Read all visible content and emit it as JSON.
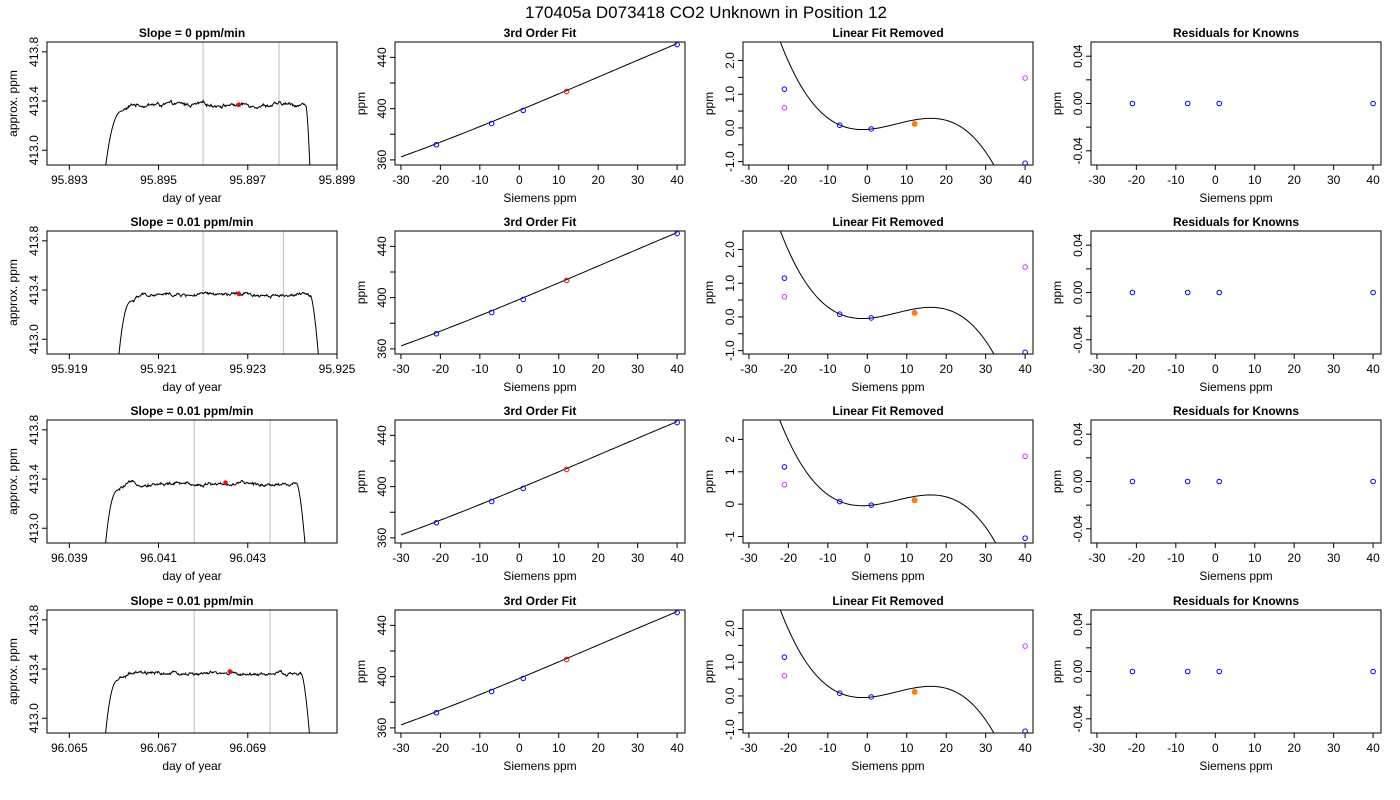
{
  "figure_title": "170405a     D073418   CO2 Unknown in Position  12",
  "colors": {
    "axis": "#000000",
    "trace": "#000000",
    "fit_line": "#000000",
    "sample_window": "#c8c8c8",
    "known_points": "#0000ff",
    "unknown_point": "#ff0000",
    "unknown_residual": "#ff7f0e",
    "raw_offsets": "#cc33ff"
  },
  "chart_data": [
    {
      "type": "line",
      "panel": "trace",
      "row": 0,
      "title": "Slope =  0  ppm/min",
      "xlabel": "day of year",
      "ylabel": "approx. ppm",
      "xlim": [
        95.8925,
        95.899
      ],
      "ylim": [
        412.88,
        413.88
      ],
      "xticks": [
        95.893,
        95.895,
        95.897,
        95.899
      ],
      "xtick_labels": [
        "95.893",
        "95.895",
        "95.897",
        "95.899"
      ],
      "yticks": [
        413.0,
        413.4,
        413.8
      ],
      "ytick_labels": [
        "413.0",
        "413.4",
        "413.8"
      ],
      "x_start": 95.8938,
      "x_end": 95.8984,
      "plateau_start": 95.8942,
      "plateau_end": 95.8983,
      "plateau_level": 413.37,
      "noise": 0.02,
      "window": [
        95.896,
        95.8977
      ],
      "marker": {
        "x": 95.8968,
        "y": 413.37
      }
    },
    {
      "type": "scatter",
      "panel": "fit",
      "row": 0,
      "title": "3rd Order Fit",
      "xlabel": "Siemens ppm",
      "ylabel": "ppm",
      "xlim": [
        -31.5,
        42
      ],
      "ylim": [
        356,
        452
      ],
      "xticks": [
        -30,
        -20,
        -10,
        0,
        10,
        20,
        30,
        40
      ],
      "yticks": [
        360,
        380,
        400,
        420,
        440
      ],
      "ytick_labels": [
        "360",
        "",
        "400",
        "",
        "440"
      ],
      "curve_x": [
        -30,
        40
      ],
      "knowns": [
        {
          "x": -21,
          "y": 371.8
        },
        {
          "x": -7,
          "y": 388.4
        },
        {
          "x": 1,
          "y": 398.6
        },
        {
          "x": 40,
          "y": 450.0
        }
      ],
      "unknown": {
        "x": 12,
        "y": 413.4
      }
    },
    {
      "type": "scatter",
      "panel": "linres",
      "row": 0,
      "title": "Linear Fit Removed",
      "xlabel": "Siemens ppm",
      "ylabel": "ppm",
      "xlim": [
        -31.5,
        42
      ],
      "ylim": [
        -1.1,
        2.55
      ],
      "xticks": [
        -30,
        -20,
        -10,
        0,
        10,
        20,
        30,
        40
      ],
      "yticks": [
        -1.0,
        -0.5,
        0.0,
        0.5,
        1.0,
        1.5,
        2.0
      ],
      "ytick_labels": [
        "-1.0",
        "",
        "0.0",
        "",
        "1.0",
        "",
        "2.0"
      ],
      "curve": {
        "cubic": -0.0001286,
        "quadratic": 0.002857,
        "linear": 0.007714,
        "constant": -0.0429,
        "x": [
          -29,
          40
        ]
      },
      "knowns": [
        {
          "x": -21,
          "y": 1.15
        },
        {
          "x": -7,
          "y": 0.08
        },
        {
          "x": 1,
          "y": -0.03
        },
        {
          "x": 40,
          "y": -1.05
        }
      ],
      "unknown": {
        "x": 12,
        "y": 0.12
      },
      "offsets": [
        {
          "x": -21,
          "y": 0.6
        },
        {
          "x": 40,
          "y": 1.48
        }
      ]
    },
    {
      "type": "scatter",
      "panel": "resid",
      "row": 0,
      "title": "Residuals for Knowns",
      "xlabel": "Siemens ppm",
      "ylabel": "ppm",
      "xlim": [
        -31.5,
        42
      ],
      "ylim": [
        -0.052,
        0.052
      ],
      "xticks": [
        -30,
        -20,
        -10,
        0,
        10,
        20,
        30,
        40
      ],
      "yticks": [
        -0.04,
        -0.02,
        0.0,
        0.02,
        0.04
      ],
      "ytick_labels": [
        "-0.04",
        "",
        "0.00",
        "",
        "0.04"
      ],
      "knowns": [
        {
          "x": -21,
          "y": 0
        },
        {
          "x": -7,
          "y": 0
        },
        {
          "x": 1,
          "y": 0
        },
        {
          "x": 40,
          "y": 0
        }
      ]
    },
    {
      "type": "line",
      "panel": "trace",
      "row": 1,
      "title": "Slope =  0.01  ppm/min",
      "xlabel": "day of year",
      "ylabel": "approx. ppm",
      "xlim": [
        95.9185,
        95.925
      ],
      "ylim": [
        412.88,
        413.88
      ],
      "xticks": [
        95.919,
        95.921,
        95.923,
        95.925
      ],
      "xtick_labels": [
        "95.919",
        "95.921",
        "95.923",
        "95.925"
      ],
      "yticks": [
        413.0,
        413.4,
        413.8
      ],
      "ytick_labels": [
        "413.0",
        "413.4",
        "413.8"
      ],
      "x_start": 95.9201,
      "x_end": 95.9246,
      "plateau_start": 95.9204,
      "plateau_end": 95.9244,
      "plateau_level": 413.36,
      "noise": 0.018,
      "window": [
        95.922,
        95.9238
      ],
      "marker": {
        "x": 95.9228,
        "y": 413.37
      }
    },
    {
      "type": "scatter",
      "panel": "fit",
      "row": 1,
      "title": "3rd Order Fit",
      "xlabel": "Siemens ppm",
      "ylabel": "ppm",
      "xlim": [
        -31.5,
        42
      ],
      "ylim": [
        356,
        452
      ],
      "xticks": [
        -30,
        -20,
        -10,
        0,
        10,
        20,
        30,
        40
      ],
      "yticks": [
        360,
        380,
        400,
        420,
        440
      ],
      "ytick_labels": [
        "360",
        "",
        "400",
        "",
        "440"
      ],
      "curve_x": [
        -30,
        40
      ],
      "knowns": [
        {
          "x": -21,
          "y": 371.8
        },
        {
          "x": -7,
          "y": 388.4
        },
        {
          "x": 1,
          "y": 398.6
        },
        {
          "x": 40,
          "y": 450.0
        }
      ],
      "unknown": {
        "x": 12,
        "y": 413.4
      }
    },
    {
      "type": "scatter",
      "panel": "linres",
      "row": 1,
      "title": "Linear Fit Removed",
      "xlabel": "Siemens ppm",
      "ylabel": "ppm",
      "xlim": [
        -31.5,
        42
      ],
      "ylim": [
        -1.1,
        2.55
      ],
      "xticks": [
        -30,
        -20,
        -10,
        0,
        10,
        20,
        30,
        40
      ],
      "yticks": [
        -1.0,
        -0.5,
        0.0,
        0.5,
        1.0,
        1.5,
        2.0
      ],
      "ytick_labels": [
        "-1.0",
        "",
        "0.0",
        "",
        "1.0",
        "",
        "2.0"
      ],
      "curve": {
        "cubic": -0.0001286,
        "quadratic": 0.002857,
        "linear": 0.007714,
        "constant": -0.0429,
        "x": [
          -29,
          40
        ]
      },
      "knowns": [
        {
          "x": -21,
          "y": 1.15
        },
        {
          "x": -7,
          "y": 0.08
        },
        {
          "x": 1,
          "y": -0.03
        },
        {
          "x": 40,
          "y": -1.05
        }
      ],
      "unknown": {
        "x": 12,
        "y": 0.12
      },
      "offsets": [
        {
          "x": -21,
          "y": 0.6
        },
        {
          "x": 40,
          "y": 1.48
        }
      ]
    },
    {
      "type": "scatter",
      "panel": "resid",
      "row": 1,
      "title": "Residuals for Knowns",
      "xlabel": "Siemens ppm",
      "ylabel": "ppm",
      "xlim": [
        -31.5,
        42
      ],
      "ylim": [
        -0.052,
        0.052
      ],
      "xticks": [
        -30,
        -20,
        -10,
        0,
        10,
        20,
        30,
        40
      ],
      "yticks": [
        -0.04,
        -0.02,
        0.0,
        0.02,
        0.04
      ],
      "ytick_labels": [
        "-0.04",
        "",
        "0.00",
        "",
        "0.04"
      ],
      "knowns": [
        {
          "x": -21,
          "y": 0
        },
        {
          "x": -7,
          "y": 0
        },
        {
          "x": 1,
          "y": 0
        },
        {
          "x": 40,
          "y": 0
        }
      ]
    },
    {
      "type": "line",
      "panel": "trace",
      "row": 2,
      "title": "Slope =  0.01  ppm/min",
      "xlabel": "day of year",
      "ylabel": "approx. ppm",
      "xlim": [
        96.0385,
        96.045
      ],
      "ylim": [
        412.88,
        413.88
      ],
      "xticks": [
        96.039,
        96.041,
        96.043
      ],
      "xtick_labels": [
        "96.039",
        "96.041",
        "96.043"
      ],
      "yticks": [
        413.0,
        413.4,
        413.8
      ],
      "ytick_labels": [
        "413.0",
        "413.4",
        "413.8"
      ],
      "x_start": 96.0398,
      "x_end": 96.0443,
      "plateau_start": 96.0401,
      "plateau_end": 96.0441,
      "plateau_level": 413.36,
      "noise": 0.018,
      "window": [
        96.0418,
        96.0435
      ],
      "marker": {
        "x": 96.0425,
        "y": 413.37
      }
    },
    {
      "type": "scatter",
      "panel": "fit",
      "row": 2,
      "title": "3rd Order Fit",
      "xlabel": "Siemens ppm",
      "ylabel": "ppm",
      "xlim": [
        -31.5,
        42
      ],
      "ylim": [
        356,
        452
      ],
      "xticks": [
        -30,
        -20,
        -10,
        0,
        10,
        20,
        30,
        40
      ],
      "yticks": [
        360,
        380,
        400,
        420,
        440
      ],
      "ytick_labels": [
        "360",
        "",
        "400",
        "",
        "440"
      ],
      "curve_x": [
        -30,
        40
      ],
      "knowns": [
        {
          "x": -21,
          "y": 371.8
        },
        {
          "x": -7,
          "y": 388.4
        },
        {
          "x": 1,
          "y": 398.6
        },
        {
          "x": 40,
          "y": 450.0
        }
      ],
      "unknown": {
        "x": 12,
        "y": 413.4
      }
    },
    {
      "type": "scatter",
      "panel": "linres",
      "row": 2,
      "title": "Linear Fit Removed",
      "xlabel": "Siemens ppm",
      "ylabel": "ppm",
      "xlim": [
        -31.5,
        42
      ],
      "ylim": [
        -1.2,
        2.6
      ],
      "xticks": [
        -30,
        -20,
        -10,
        0,
        10,
        20,
        30,
        40
      ],
      "yticks": [
        -1,
        0,
        1,
        2
      ],
      "ytick_labels": [
        "-1",
        "0",
        "1",
        "2"
      ],
      "curve": {
        "cubic": -0.0001286,
        "quadratic": 0.002857,
        "linear": 0.007714,
        "constant": -0.0429,
        "x": [
          -29,
          40
        ]
      },
      "knowns": [
        {
          "x": -21,
          "y": 1.15
        },
        {
          "x": -7,
          "y": 0.08
        },
        {
          "x": 1,
          "y": -0.03
        },
        {
          "x": 40,
          "y": -1.05
        }
      ],
      "unknown": {
        "x": 12,
        "y": 0.12
      },
      "offsets": [
        {
          "x": -21,
          "y": 0.6
        },
        {
          "x": 40,
          "y": 1.48
        }
      ]
    },
    {
      "type": "scatter",
      "panel": "resid",
      "row": 2,
      "title": "Residuals for Knowns",
      "xlabel": "Siemens ppm",
      "ylabel": "ppm",
      "xlim": [
        -31.5,
        42
      ],
      "ylim": [
        -0.052,
        0.052
      ],
      "xticks": [
        -30,
        -20,
        -10,
        0,
        10,
        20,
        30,
        40
      ],
      "yticks": [
        -0.04,
        -0.02,
        0.0,
        0.02,
        0.04
      ],
      "ytick_labels": [
        "-0.04",
        "",
        "0.00",
        "",
        "0.04"
      ],
      "knowns": [
        {
          "x": -21,
          "y": 0
        },
        {
          "x": -7,
          "y": 0
        },
        {
          "x": 1,
          "y": 0
        },
        {
          "x": 40,
          "y": 0
        }
      ]
    },
    {
      "type": "line",
      "panel": "trace",
      "row": 3,
      "title": "Slope =  0.01  ppm/min",
      "xlabel": "day of year",
      "ylabel": "approx. ppm",
      "xlim": [
        96.0645,
        96.071
      ],
      "ylim": [
        412.88,
        413.88
      ],
      "xticks": [
        96.065,
        96.067,
        96.069
      ],
      "xtick_labels": [
        "96.065",
        "96.067",
        "96.069"
      ],
      "yticks": [
        413.0,
        413.4,
        413.8
      ],
      "ytick_labels": [
        "413.0",
        "413.4",
        "413.8"
      ],
      "x_start": 96.0658,
      "x_end": 96.0704,
      "plateau_start": 96.0661,
      "plateau_end": 96.0702,
      "plateau_level": 413.36,
      "noise": 0.018,
      "window": [
        96.0678,
        96.0695
      ],
      "marker": {
        "x": 96.0686,
        "y": 413.38
      }
    },
    {
      "type": "scatter",
      "panel": "fit",
      "row": 3,
      "title": "3rd Order Fit",
      "xlabel": "Siemens ppm",
      "ylabel": "ppm",
      "xlim": [
        -31.5,
        42
      ],
      "ylim": [
        356,
        452
      ],
      "xticks": [
        -30,
        -20,
        -10,
        0,
        10,
        20,
        30,
        40
      ],
      "yticks": [
        360,
        380,
        400,
        420,
        440
      ],
      "ytick_labels": [
        "360",
        "",
        "400",
        "",
        "440"
      ],
      "curve_x": [
        -30,
        40
      ],
      "knowns": [
        {
          "x": -21,
          "y": 371.8
        },
        {
          "x": -7,
          "y": 388.4
        },
        {
          "x": 1,
          "y": 398.6
        },
        {
          "x": 40,
          "y": 450.0
        }
      ],
      "unknown": {
        "x": 12,
        "y": 413.4
      }
    },
    {
      "type": "scatter",
      "panel": "linres",
      "row": 3,
      "title": "Linear Fit Removed",
      "xlabel": "Siemens ppm",
      "ylabel": "ppm",
      "xlim": [
        -31.5,
        42
      ],
      "ylim": [
        -1.1,
        2.55
      ],
      "xticks": [
        -30,
        -20,
        -10,
        0,
        10,
        20,
        30,
        40
      ],
      "yticks": [
        -1.0,
        -0.5,
        0.0,
        0.5,
        1.0,
        1.5,
        2.0
      ],
      "ytick_labels": [
        "-1.0",
        "",
        "0.0",
        "",
        "1.0",
        "",
        "2.0"
      ],
      "curve": {
        "cubic": -0.0001286,
        "quadratic": 0.002857,
        "linear": 0.007714,
        "constant": -0.0429,
        "x": [
          -29,
          40
        ]
      },
      "knowns": [
        {
          "x": -21,
          "y": 1.15
        },
        {
          "x": -7,
          "y": 0.08
        },
        {
          "x": 1,
          "y": -0.03
        },
        {
          "x": 40,
          "y": -1.05
        }
      ],
      "unknown": {
        "x": 12,
        "y": 0.12
      },
      "offsets": [
        {
          "x": -21,
          "y": 0.6
        },
        {
          "x": 40,
          "y": 1.48
        }
      ]
    },
    {
      "type": "scatter",
      "panel": "resid",
      "row": 3,
      "title": "Residuals for Knowns",
      "xlabel": "Siemens ppm",
      "ylabel": "ppm",
      "xlim": [
        -31.5,
        42
      ],
      "ylim": [
        -0.052,
        0.052
      ],
      "xticks": [
        -30,
        -20,
        -10,
        0,
        10,
        20,
        30,
        40
      ],
      "yticks": [
        -0.04,
        -0.02,
        0.0,
        0.02,
        0.04
      ],
      "ytick_labels": [
        "-0.04",
        "",
        "0.00",
        "",
        "0.04"
      ],
      "knowns": [
        {
          "x": -21,
          "y": 0
        },
        {
          "x": -7,
          "y": 0
        },
        {
          "x": 1,
          "y": 0
        },
        {
          "x": 40,
          "y": 0
        }
      ]
    }
  ]
}
